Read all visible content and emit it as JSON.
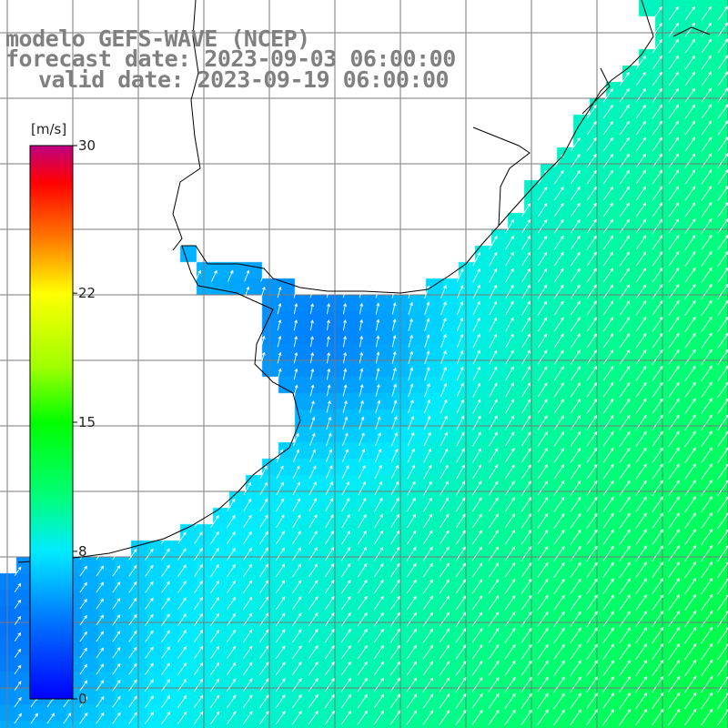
{
  "title": {
    "model": "modelo GEFS-WAVE (NCEP)",
    "forecast": "forecast date: 2023-09-03 06:00:00",
    "valid": "valid date: 2023-09-19 06:00:00"
  },
  "colorbar": {
    "unit": "[m/s]",
    "ticks": [
      {
        "label": "30",
        "value": 30
      },
      {
        "label": "22",
        "value": 22
      },
      {
        "label": "15",
        "value": 15
      },
      {
        "label": "8",
        "value": 8
      },
      {
        "label": "0",
        "value": 0
      }
    ],
    "range": [
      0,
      30
    ],
    "colors": [
      "#0000ff",
      "#0080ff",
      "#00e5ff",
      "#00ff80",
      "#00ff00",
      "#80ff00",
      "#ffff00",
      "#ff8000",
      "#ff0000",
      "#c00080"
    ]
  },
  "map": {
    "field": "wind speed with direction arrows",
    "land_color": "#ffffff",
    "grid": true,
    "dominant_wind_direction": "from southwest toward northeast",
    "speed_range_shown": "about 3 to 12 m/s"
  }
}
